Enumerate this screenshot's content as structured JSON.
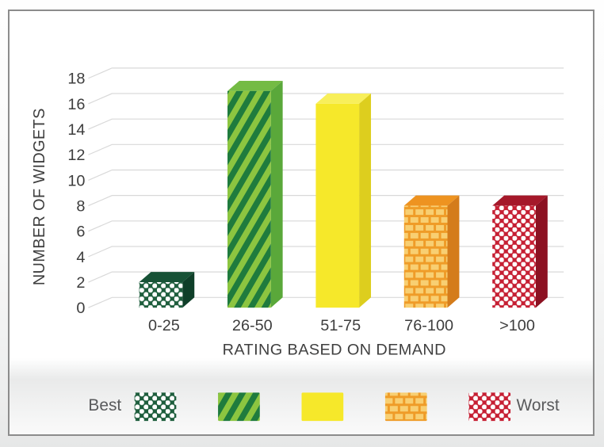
{
  "chart_data": {
    "type": "bar",
    "title": "",
    "xlabel": "RATING BASED ON DEMAND",
    "ylabel": "NUMBER OF WIDGETS",
    "categories": [
      "0-25",
      "26-50",
      "51-75",
      "76-100",
      ">100"
    ],
    "values": [
      2,
      17,
      16,
      8,
      8
    ],
    "ylim": [
      0,
      18
    ],
    "ytick_step": 2,
    "yticks": [
      0,
      2,
      4,
      6,
      8,
      10,
      12,
      14,
      16,
      18
    ],
    "grid": true,
    "effect": "3d",
    "legend_position": "bottom",
    "bars": [
      {
        "category": "0-25",
        "value": 2,
        "pattern": "dots",
        "front_color": "#1e5e3d",
        "pattern_color": "#ffffff",
        "top_color": "#175236",
        "side_color": "#0f3f29"
      },
      {
        "category": "26-50",
        "value": 17,
        "pattern": "stripes",
        "front_color": "#8cc540",
        "pattern_color": "#1f7b3d",
        "top_color": "#74bb44",
        "side_color": "#5aa83a"
      },
      {
        "category": "51-75",
        "value": 16,
        "pattern": "solid",
        "front_color": "#f6e82a",
        "pattern_color": "#f6e82a",
        "top_color": "#f8ef5a",
        "side_color": "#ddce1e"
      },
      {
        "category": "76-100",
        "value": 8,
        "pattern": "bricks",
        "front_color": "#ef9c28",
        "pattern_color": "#f8cf72",
        "top_color": "#ee9320",
        "side_color": "#d47c1b"
      },
      {
        "category": ">100",
        "value": 8,
        "pattern": "dots",
        "front_color": "#c61f33",
        "pattern_color": "#ffffff",
        "top_color": "#a5182a",
        "side_color": "#8c1122"
      }
    ],
    "legend": {
      "left_label": "Best",
      "right_label": "Worst"
    }
  },
  "colors": {
    "grid": "#d9d9d9",
    "tick_text": "#3d3d3d",
    "axis_title_text": "#3f3f3f",
    "legend_text": "#595a5c",
    "panel_border": "#8c8c8c",
    "panel_background": "#ffffff",
    "legend_band": "#e9eaea"
  }
}
